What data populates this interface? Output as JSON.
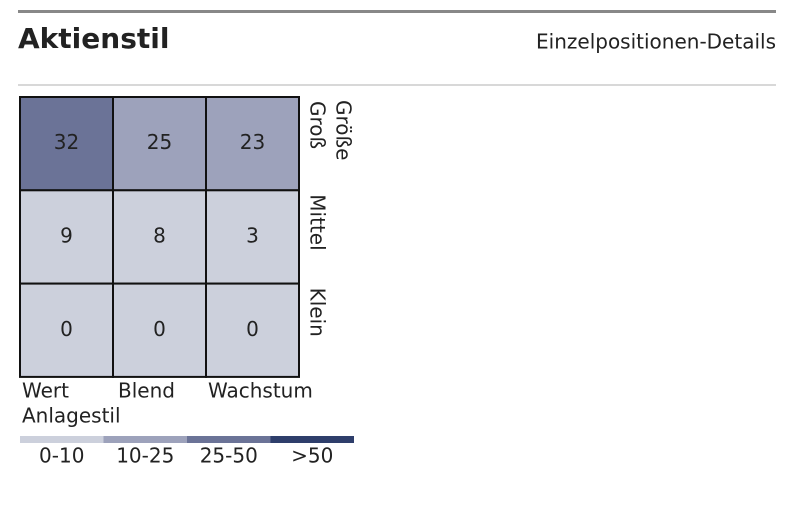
{
  "chart_data": {
    "type": "heatmap",
    "title": "Aktienstil",
    "link": "Einzelpositionen-Details",
    "x_label": "Anlagestil",
    "y_label": "Größe",
    "categories": [
      "Wert",
      "Blend",
      "Wachstum"
    ],
    "rows": [
      "Groß",
      "Mittel",
      "Klein"
    ],
    "values": [
      [
        32,
        25,
        23
      ],
      [
        9,
        8,
        3
      ],
      [
        0,
        0,
        0
      ]
    ],
    "legend": [
      {
        "label": "0-10",
        "color": "#ccd0dc"
      },
      {
        "label": "10-25",
        "color": "#9da2bb"
      },
      {
        "label": "25-50",
        "color": "#6b7397"
      },
      {
        "label": ">50",
        "color": "#2e3e6b"
      }
    ]
  }
}
